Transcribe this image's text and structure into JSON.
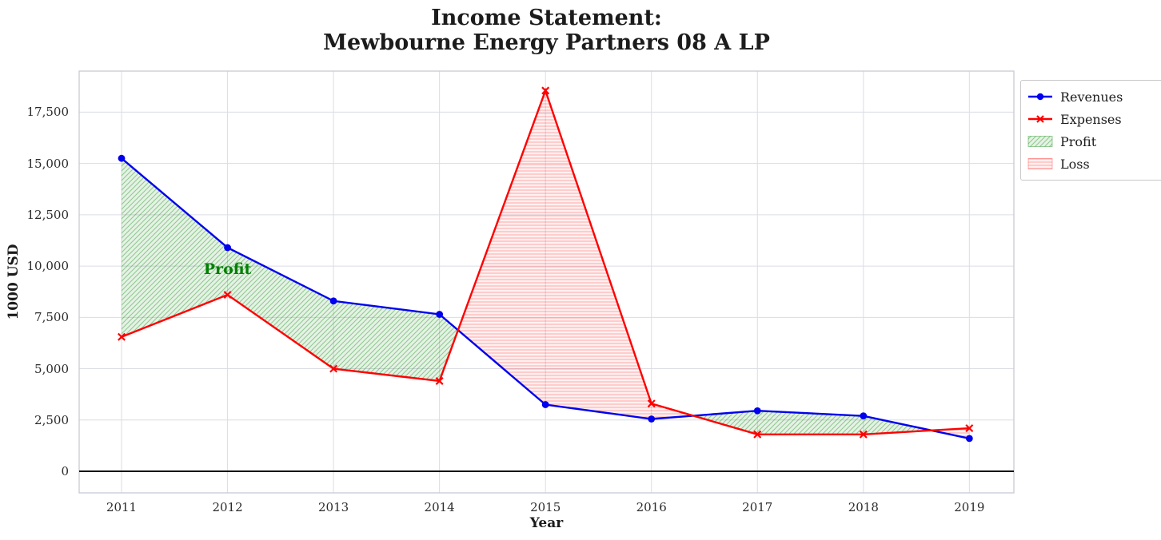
{
  "chart_data": {
    "type": "line",
    "title_lines": [
      "Income Statement:",
      "Mewbourne Energy Partners 08 A LP"
    ],
    "xlabel": "Year",
    "ylabel": "1000 USD",
    "x": [
      2011,
      2012,
      2013,
      2014,
      2015,
      2016,
      2017,
      2018,
      2019
    ],
    "series": [
      {
        "name": "Revenues",
        "color": "#0000ee",
        "marker": "circle",
        "values": [
          15250,
          10900,
          8300,
          7650,
          3250,
          2550,
          2950,
          2700,
          1600
        ]
      },
      {
        "name": "Expenses",
        "color": "#ff0000",
        "marker": "x",
        "values": [
          6550,
          8600,
          5000,
          4400,
          18550,
          3300,
          1800,
          1800,
          2100
        ]
      }
    ],
    "fills": [
      {
        "name": "Profit",
        "rule": "revenues > expenses",
        "hatch": "diagonal",
        "face": "rgba(0,128,0,0.10)",
        "hatch_color": "rgba(0,128,0,0.38)"
      },
      {
        "name": "Loss",
        "rule": "expenses > revenues",
        "hatch": "horizontal",
        "face": "rgba(255,0,0,0.06)",
        "hatch_color": "rgba(255,0,0,0.30)"
      }
    ],
    "annotation": {
      "text": "Profit",
      "x": 2012,
      "y": 9850,
      "color": "#008000"
    },
    "y_ticks": [
      0,
      2500,
      5000,
      7500,
      10000,
      12500,
      15000,
      17500
    ],
    "x_ticks": [
      2011,
      2012,
      2013,
      2014,
      2015,
      2016,
      2017,
      2018,
      2019
    ],
    "xlim": [
      2010.6,
      2019.42
    ],
    "ylim": [
      -1050,
      19500
    ],
    "grid": true,
    "grid_color": "#dcdce6",
    "spine_color": "#c9c9d4",
    "zero_line_color": "#000000",
    "legend_position": "outside upper right"
  }
}
